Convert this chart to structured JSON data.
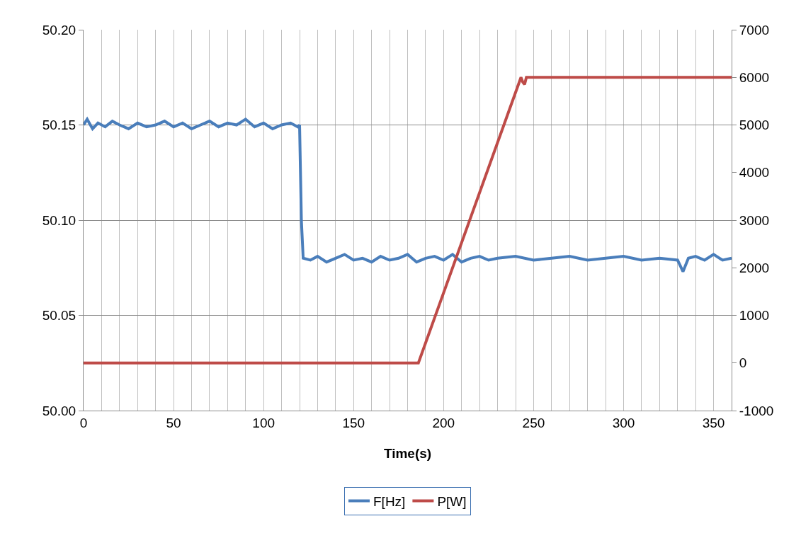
{
  "chart_data": {
    "type": "line",
    "xlabel": "Time(s)",
    "xlim": [
      0,
      360
    ],
    "xticks": [
      0,
      {
        "value": 10,
        "label": null
      },
      {
        "value": 20,
        "label": null
      },
      {
        "value": 30,
        "label": null
      },
      {
        "value": 40,
        "label": null
      },
      50,
      {
        "value": 60,
        "label": null
      },
      {
        "value": 70,
        "label": null
      },
      {
        "value": 80,
        "label": null
      },
      {
        "value": 90,
        "label": null
      },
      100,
      {
        "value": 110,
        "label": null
      },
      {
        "value": 120,
        "label": null
      },
      {
        "value": 130,
        "label": null
      },
      {
        "value": 140,
        "label": null
      },
      150,
      {
        "value": 160,
        "label": null
      },
      {
        "value": 170,
        "label": null
      },
      {
        "value": 180,
        "label": null
      },
      {
        "value": 190,
        "label": null
      },
      200,
      {
        "value": 210,
        "label": null
      },
      {
        "value": 220,
        "label": null
      },
      {
        "value": 230,
        "label": null
      },
      {
        "value": 240,
        "label": null
      },
      250,
      {
        "value": 260,
        "label": null
      },
      {
        "value": 270,
        "label": null
      },
      {
        "value": 280,
        "label": null
      },
      {
        "value": 290,
        "label": null
      },
      300,
      {
        "value": 310,
        "label": null
      },
      {
        "value": 320,
        "label": null
      },
      {
        "value": 330,
        "label": null
      },
      {
        "value": 340,
        "label": null
      },
      350,
      {
        "value": 360,
        "label": null
      }
    ],
    "ylim": [
      50.0,
      50.2
    ],
    "yticks": [
      {
        "value": 50.0,
        "label": "50.00"
      },
      {
        "value": 50.05,
        "label": "50.05"
      },
      {
        "value": 50.1,
        "label": "50.10"
      },
      {
        "value": 50.15,
        "label": "50.15"
      },
      {
        "value": 50.2,
        "label": "50.20"
      }
    ],
    "y2lim": [
      -1000,
      7000
    ],
    "y2ticks": [
      -1000,
      0,
      1000,
      2000,
      3000,
      4000,
      5000,
      6000,
      7000
    ],
    "grid": true,
    "legend": "bottom",
    "line_style": "solid",
    "marker": "none",
    "series": [
      {
        "name": "F[Hz]",
        "color": "#4a7ebb",
        "x": [
          0,
          2,
          5,
          8,
          12,
          16,
          20,
          25,
          30,
          35,
          40,
          45,
          50,
          55,
          60,
          65,
          70,
          75,
          80,
          85,
          90,
          95,
          100,
          105,
          110,
          115,
          119,
          120,
          121,
          122,
          126,
          130,
          135,
          140,
          145,
          150,
          155,
          160,
          165,
          170,
          175,
          180,
          185,
          190,
          195,
          200,
          205,
          210,
          215,
          220,
          225,
          230,
          240,
          250,
          260,
          270,
          280,
          290,
          300,
          310,
          320,
          330,
          333,
          336,
          340,
          345,
          350,
          355,
          360
        ],
        "values": [
          50.15,
          50.153,
          50.148,
          50.151,
          50.149,
          50.152,
          50.15,
          50.148,
          50.151,
          50.149,
          50.15,
          50.152,
          50.149,
          50.151,
          50.148,
          50.15,
          50.152,
          50.149,
          50.151,
          50.15,
          50.153,
          50.149,
          50.151,
          50.148,
          50.15,
          50.151,
          50.149,
          50.15,
          50.1,
          50.08,
          50.079,
          50.081,
          50.078,
          50.08,
          50.082,
          50.079,
          50.08,
          50.078,
          50.081,
          50.079,
          50.08,
          50.082,
          50.078,
          50.08,
          50.081,
          50.079,
          50.082,
          50.078,
          50.08,
          50.081,
          50.079,
          50.08,
          50.081,
          50.079,
          50.08,
          50.081,
          50.079,
          50.08,
          50.081,
          50.079,
          50.08,
          50.079,
          50.073,
          50.08,
          50.081,
          50.079,
          50.082,
          50.079,
          50.08
        ]
      },
      {
        "name": "P[W]",
        "color": "#be4b48",
        "axis": "y2",
        "x": [
          0,
          186,
          243,
          244,
          245,
          246,
          248,
          360
        ],
        "values": [
          0,
          0,
          6000,
          5900,
          5850,
          6000,
          6000,
          6000
        ]
      }
    ]
  }
}
